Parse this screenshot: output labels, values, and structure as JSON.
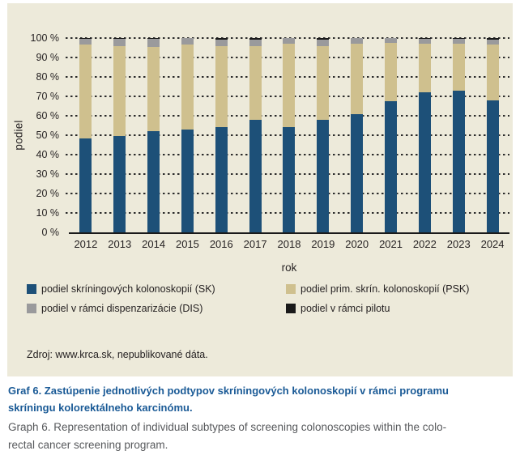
{
  "chart_data": {
    "type": "bar",
    "stacked": true,
    "percent": true,
    "grid": true,
    "legend_position": "bottom",
    "xlabel": "rok",
    "ylabel": "podiel",
    "ylim": [
      0,
      100
    ],
    "yticks": [
      "0 %",
      "10 %",
      "20 %",
      "30 %",
      "40 %",
      "50 %",
      "60 %",
      "70 %",
      "80 %",
      "90 %",
      "100 %"
    ],
    "categories": [
      "2012",
      "2013",
      "2014",
      "2015",
      "2016",
      "2017",
      "2018",
      "2019",
      "2020",
      "2021",
      "2022",
      "2023",
      "2024"
    ],
    "series": [
      {
        "name": "podiel skríningových kolonoskopií (SK)",
        "color": "#1d5078",
        "values": [
          48.5,
          49.5,
          52,
          53,
          54,
          58,
          54,
          58,
          61,
          67.5,
          72,
          73,
          68
        ]
      },
      {
        "name": "podiel prim. skrín. kolonoskopií (PSK)",
        "color": "#cfc08e",
        "values": [
          48,
          46.5,
          43.5,
          43.5,
          42,
          38,
          43,
          38,
          36,
          30,
          25,
          24,
          28.5
        ]
      },
      {
        "name": "podiel v rámci dispenzarizácie (DIS)",
        "color": "#9a9a9c",
        "values": [
          3,
          3.5,
          4,
          3.5,
          3,
          3,
          3,
          3,
          3,
          2.5,
          2.5,
          2.5,
          2.5
        ]
      },
      {
        "name": "podiel v rámci pilotu",
        "color": "#1a1a1a",
        "values": [
          0.5,
          0.5,
          0.5,
          0,
          1,
          1,
          0,
          1,
          0,
          0,
          0.5,
          0.5,
          1
        ]
      }
    ]
  },
  "source": {
    "text": "Zdroj: www.krca.sk, nepublikované dáta."
  },
  "caption": {
    "slovak": "Graf 6. Zastúpenie jednotlivých podtypov skríningových kolonoskopií v rámci programu\nskríningu kolorektálneho karcinómu.",
    "english": "Graph 6. Representation of individual subtypes of screening colonoscopies within the colo-\nrectal cancer screening program."
  },
  "colors": {
    "panel_background": "#edeada",
    "caption_title": "#1a5a96",
    "caption_body": "#57595c",
    "axis_text": "#231f20"
  }
}
